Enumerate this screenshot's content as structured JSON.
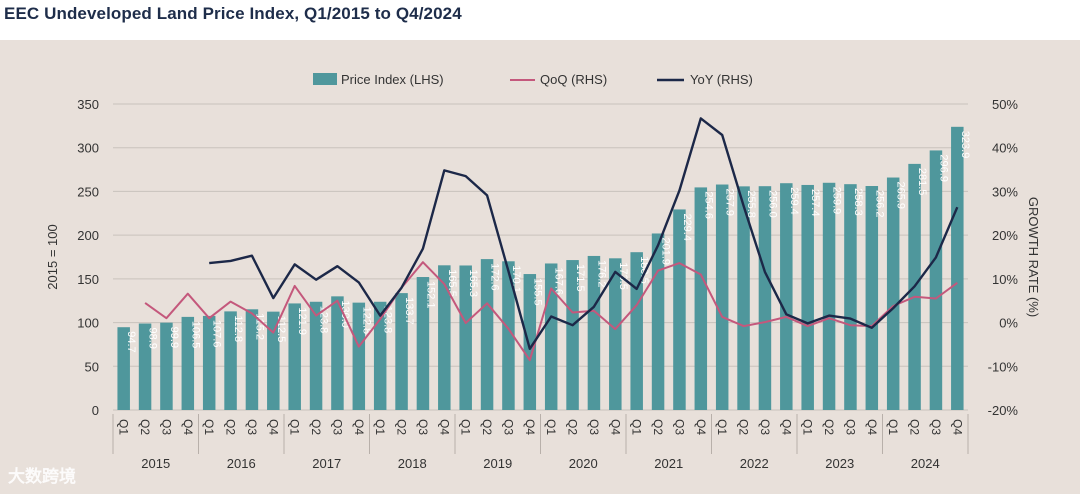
{
  "title": "EEC Undeveloped Land Price Index, Q1/2015 to Q4/2024",
  "watermark": "大数跨境",
  "colors": {
    "bar": "#4f979c",
    "qoq": "#c4587c",
    "yoy": "#1c2848",
    "background": "#e8e0da",
    "grid": "#c9c2bc",
    "text": "#333333",
    "barLabel": "#ffffff"
  },
  "chart_data": {
    "type": "bar",
    "title": "EEC Undeveloped Land Price Index, Q1/2015 to Q4/2024",
    "ylabel": "2015 = 100",
    "y2label": "GROWTH RATE (%)",
    "ylim": [
      0,
      350
    ],
    "y2lim": [
      -20,
      50
    ],
    "yticks": [
      "0",
      "50",
      "100",
      "150",
      "200",
      "250",
      "300",
      "350"
    ],
    "y2ticks": [
      "-20%",
      "-10%",
      "0%",
      "10%",
      "20%",
      "30%",
      "40%",
      "50%"
    ],
    "quarters": [
      "Q1",
      "Q2",
      "Q3",
      "Q4"
    ],
    "years": [
      "2015",
      "2016",
      "2017",
      "2018",
      "2019",
      "2020",
      "2021",
      "2022",
      "2023",
      "2024"
    ],
    "legend": [
      "Price Index (LHS)",
      "QoQ (RHS)",
      "YoY (RHS)"
    ],
    "series": [
      {
        "name": "Price Index (LHS)",
        "kind": "bar",
        "values": [
          94.7,
          98.9,
          99.9,
          106.5,
          107.6,
          112.8,
          115.2,
          112.5,
          121.9,
          123.8,
          130.0,
          122.8,
          123.8,
          133.7,
          152.1,
          165.5,
          165.3,
          172.6,
          170.1,
          155.5,
          167.6,
          171.5,
          176.2,
          173.5,
          180.5,
          201.9,
          229.4,
          254.6,
          257.9,
          255.8,
          256.0,
          259.4,
          257.4,
          259.9,
          258.3,
          256.2,
          265.9,
          281.5,
          296.9,
          323.9
        ],
        "labels": [
          "94.7",
          "98.9",
          "99.9",
          "106.5",
          "107.6",
          "112.8",
          "115.2",
          "112.5",
          "121.9",
          "123.8",
          "130.0",
          "122.8",
          "123.8",
          "133.7",
          "152.1",
          "165.5",
          "165.3",
          "172.6",
          "170.1",
          "155.5",
          "167.6",
          "171.5",
          "176.2",
          "173.5",
          "180.5",
          "201.9",
          "229.4",
          "254.6",
          "257.9",
          "255.8",
          "256.0",
          "259.4",
          "257.4",
          "259.9",
          "258.3",
          "256.2",
          "265.9",
          "281.5",
          "296.9",
          "323.9"
        ]
      },
      {
        "name": "QoQ (RHS)",
        "kind": "line",
        "values": [
          null,
          4.5,
          1.0,
          6.6,
          1.0,
          4.8,
          2.1,
          -2.3,
          8.4,
          1.6,
          5.0,
          -5.5,
          0.8,
          8.0,
          13.8,
          8.8,
          -0.1,
          4.4,
          -1.4,
          -8.6,
          7.8,
          2.3,
          2.7,
          -1.5,
          4.0,
          11.9,
          13.6,
          11.0,
          1.3,
          -0.8,
          0.1,
          1.3,
          -0.8,
          1.0,
          -0.6,
          -0.8,
          3.8,
          5.9,
          5.5,
          9.1
        ]
      },
      {
        "name": "YoY (RHS)",
        "kind": "line",
        "values": [
          null,
          null,
          null,
          null,
          13.6,
          14.1,
          15.3,
          5.6,
          13.3,
          9.8,
          12.9,
          9.2,
          1.6,
          8.0,
          16.9,
          34.8,
          33.5,
          29.1,
          11.8,
          -6.0,
          1.4,
          -0.6,
          3.6,
          11.6,
          7.7,
          17.7,
          30.2,
          46.7,
          42.9,
          26.7,
          11.6,
          1.9,
          -0.2,
          1.6,
          0.9,
          -1.2,
          3.3,
          8.3,
          14.9,
          26.4
        ]
      }
    ]
  }
}
